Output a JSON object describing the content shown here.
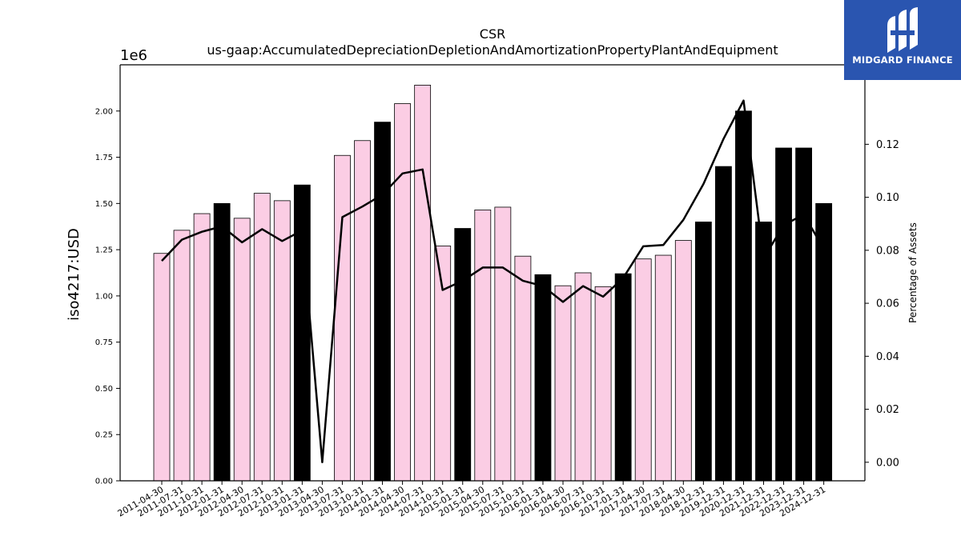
{
  "chart_data": {
    "type": "bar",
    "title": "CSR",
    "subtitle": "us-gaap:AccumulatedDepreciationDepletionAndAmortizationPropertyPlantAndEquipment",
    "ylabel": "iso4217:USD",
    "y_offset_label": "1e6",
    "y2label": "Percentage of Assets",
    "ylim": [
      0,
      2.25
    ],
    "y2lim": [
      -0.007,
      0.15
    ],
    "yticks": [
      "0.00",
      "0.25",
      "0.50",
      "0.75",
      "1.00",
      "1.25",
      "1.50",
      "1.75",
      "2.00"
    ],
    "y2ticks": [
      "0.00",
      "0.02",
      "0.04",
      "0.06",
      "0.08",
      "0.10",
      "0.12"
    ],
    "grid": false,
    "categories": [
      "2011-04-30",
      "2011-07-31",
      "2011-10-31",
      "2012-01-31",
      "2012-04-30",
      "2012-07-31",
      "2012-10-31",
      "2013-01-31",
      "2013-04-30",
      "2013-07-31",
      "2013-10-31",
      "2014-01-31",
      "2014-04-30",
      "2014-07-31",
      "2014-10-31",
      "2015-01-31",
      "2015-04-30",
      "2015-07-31",
      "2015-10-31",
      "2016-01-31",
      "2016-04-30",
      "2016-07-31",
      "2016-10-31",
      "2017-01-31",
      "2017-04-30",
      "2017-07-31",
      "2018-04-30",
      "2018-12-31",
      "2019-12-31",
      "2020-12-31",
      "2021-12-31",
      "2022-12-31",
      "2023-12-31",
      "2024-12-31"
    ],
    "series": [
      {
        "type": "bar",
        "values": [
          1.23,
          1.355,
          1.445,
          1.5,
          1.42,
          1.555,
          1.515,
          1.6,
          0,
          1.76,
          1.84,
          1.94,
          2.04,
          2.14,
          1.27,
          1.365,
          1.465,
          1.48,
          1.215,
          1.115,
          1.055,
          1.125,
          1.05,
          1.12,
          1.2,
          1.22,
          1.3,
          1.4,
          1.7,
          2.0,
          1.4,
          1.8,
          1.8,
          1.5
        ],
        "highlight": [
          false,
          false,
          false,
          true,
          false,
          false,
          false,
          true,
          false,
          false,
          false,
          true,
          false,
          false,
          false,
          true,
          false,
          false,
          false,
          true,
          false,
          false,
          false,
          true,
          false,
          false,
          false,
          true,
          true,
          true,
          true,
          true,
          true,
          true
        ]
      },
      {
        "type": "line",
        "axis": "right",
        "values": [
          0.076,
          0.084,
          0.087,
          0.089,
          0.083,
          0.088,
          0.0835,
          0.0875,
          0.0,
          0.0925,
          0.0965,
          0.101,
          0.109,
          0.1105,
          0.065,
          0.0685,
          0.0735,
          0.0735,
          0.0685,
          0.0665,
          0.0605,
          0.0665,
          0.0625,
          0.0695,
          0.0815,
          0.082,
          0.0915,
          0.105,
          0.122,
          0.1365,
          0.077,
          0.0895,
          0.0935,
          0.0805
        ]
      }
    ],
    "colors": {
      "bar": "#fbcde4",
      "bar_highlight": "#000000",
      "line": "#000000",
      "edge": "#000000"
    }
  },
  "logo": {
    "text": "MIDGARD FINANCE"
  }
}
